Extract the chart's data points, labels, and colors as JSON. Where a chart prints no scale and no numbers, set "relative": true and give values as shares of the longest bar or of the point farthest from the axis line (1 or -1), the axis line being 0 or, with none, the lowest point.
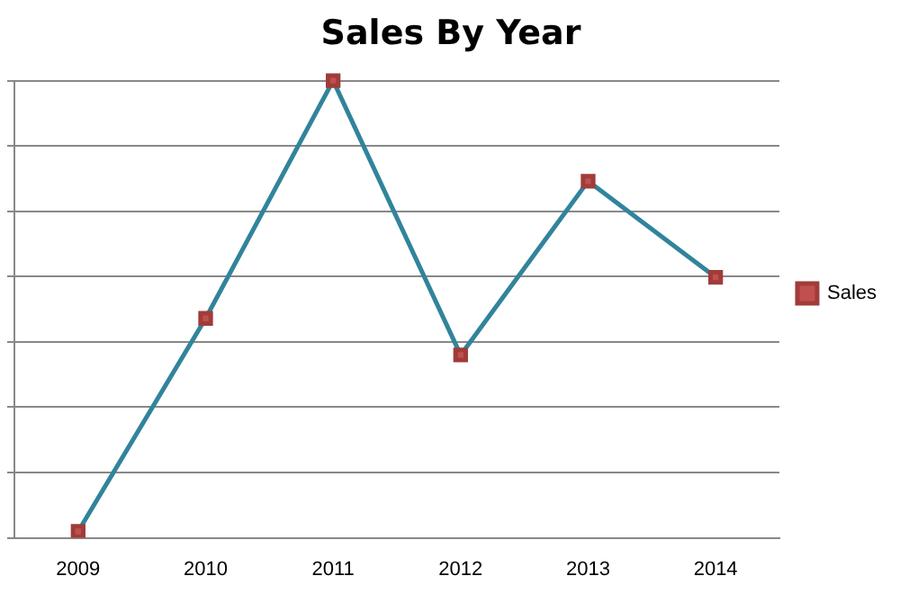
{
  "chart_data": {
    "type": "line",
    "title": "Sales By Year",
    "categories": [
      "2009",
      "2010",
      "2011",
      "2012",
      "2013",
      "2014"
    ],
    "series": [
      {
        "name": "Sales",
        "color": "#31849b",
        "values": [
          0.014,
          0.48,
          1,
          0.4,
          0.78,
          0.57
        ]
      }
    ],
    "relative": true,
    "grid": "y",
    "legend": "right",
    "marker": "square",
    "line_style": "solid"
  }
}
